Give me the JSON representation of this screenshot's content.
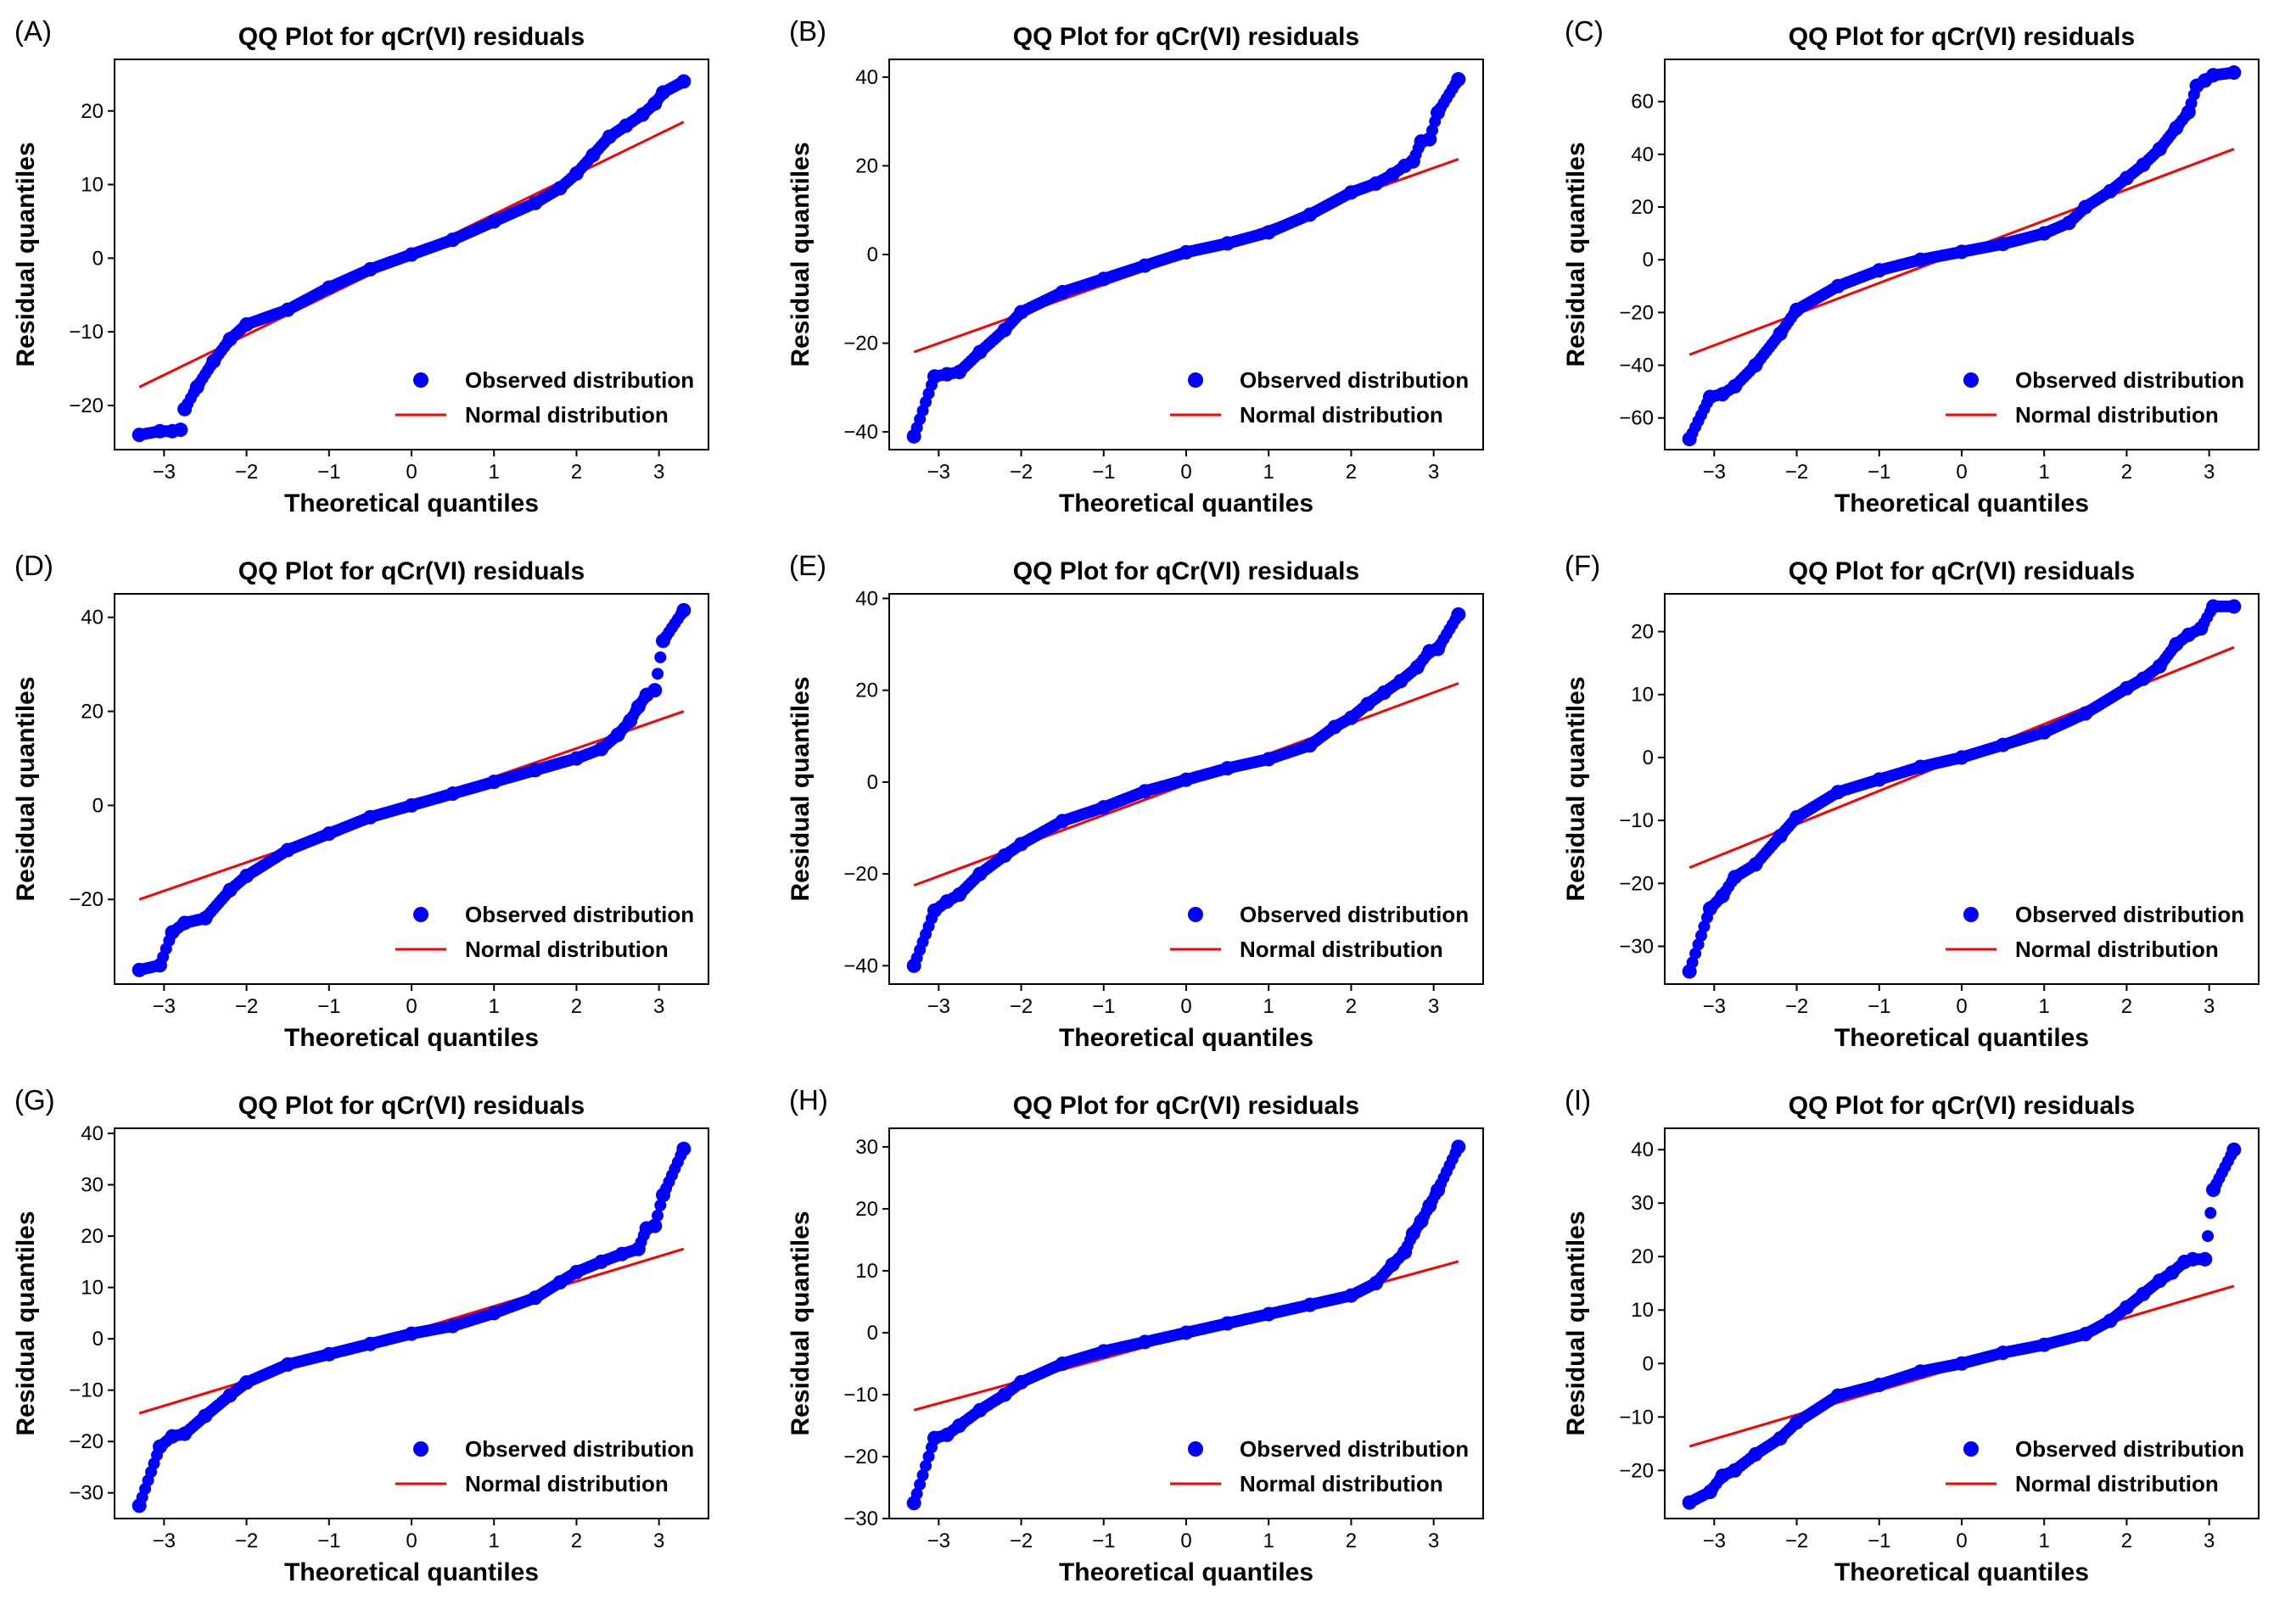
{
  "figure": {
    "panels_title": "QQ Plot for qCr(VI) residuals",
    "xlabel": "Theoretical quantiles",
    "ylabel": "Residual quantiles",
    "legend": {
      "observed": "Observed distribution",
      "normal": "Normal distribution"
    },
    "colors": {
      "points": "#0000ff",
      "line": "#ff0000"
    }
  },
  "chart_data": [
    {
      "type": "scatter",
      "panel": "(A)",
      "title": "QQ Plot for qCr(VI) residuals",
      "xlabel": "Theoretical quantiles",
      "ylabel": "Residual quantiles",
      "xlim": [
        -3.6,
        3.6
      ],
      "ylim": [
        -26,
        27
      ],
      "xticks": [
        -3,
        -2,
        -1,
        0,
        1,
        2,
        3
      ],
      "yticks": [
        -20,
        -10,
        0,
        10,
        20
      ],
      "fit_line": {
        "x": [
          -3.3,
          3.3
        ],
        "y": [
          -17.5,
          18.5
        ]
      },
      "points": {
        "x": [
          -3.3,
          -3.05,
          -2.9,
          -2.8,
          -2.75,
          -2.6,
          -2.4,
          -2.2,
          -2.0,
          -1.5,
          -1.0,
          -0.5,
          0.0,
          0.5,
          1.0,
          1.5,
          1.8,
          2.0,
          2.2,
          2.4,
          2.6,
          2.8,
          2.95,
          3.05,
          3.3
        ],
        "y": [
          -24,
          -23.5,
          -23.5,
          -23.3,
          -20.5,
          -17.5,
          -14,
          -11,
          -9,
          -7,
          -4,
          -1.5,
          0.5,
          2.5,
          5,
          7.5,
          9.5,
          11.5,
          14,
          16.5,
          18,
          19.5,
          21,
          22.5,
          24
        ]
      },
      "legend": [
        "Observed distribution",
        "Normal distribution"
      ]
    },
    {
      "type": "scatter",
      "panel": "(B)",
      "title": "QQ Plot for qCr(VI) residuals",
      "xlabel": "Theoretical quantiles",
      "ylabel": "Residual quantiles",
      "xlim": [
        -3.6,
        3.6
      ],
      "ylim": [
        -44,
        44
      ],
      "xticks": [
        -3,
        -2,
        -1,
        0,
        1,
        2,
        3
      ],
      "yticks": [
        -40,
        -20,
        0,
        20,
        40
      ],
      "fit_line": {
        "x": [
          -3.3,
          3.3
        ],
        "y": [
          -22,
          21.5
        ]
      },
      "points": {
        "x": [
          -3.3,
          -3.05,
          -2.9,
          -2.75,
          -2.5,
          -2.2,
          -2.0,
          -1.5,
          -1.0,
          -0.5,
          0.0,
          0.5,
          1.0,
          1.5,
          2.0,
          2.3,
          2.5,
          2.65,
          2.75,
          2.85,
          2.95,
          3.05,
          3.3
        ],
        "y": [
          -41,
          -27.5,
          -27,
          -26.5,
          -22,
          -17,
          -13,
          -8.5,
          -5.5,
          -2.5,
          0.5,
          2.5,
          5,
          9,
          14,
          16,
          18,
          20,
          21,
          25.5,
          26,
          32,
          39.5
        ]
      },
      "legend": [
        "Observed distribution",
        "Normal distribution"
      ]
    },
    {
      "type": "scatter",
      "panel": "(C)",
      "title": "QQ Plot for qCr(VI) residuals",
      "xlabel": "Theoretical quantiles",
      "ylabel": "Residual quantiles",
      "xlim": [
        -3.6,
        3.6
      ],
      "ylim": [
        -72,
        76
      ],
      "xticks": [
        -3,
        -2,
        -1,
        0,
        1,
        2,
        3
      ],
      "yticks": [
        -60,
        -40,
        -20,
        0,
        20,
        40,
        60
      ],
      "fit_line": {
        "x": [
          -3.3,
          3.3
        ],
        "y": [
          -36,
          42
        ]
      },
      "points": {
        "x": [
          -3.3,
          -3.05,
          -2.9,
          -2.75,
          -2.5,
          -2.2,
          -2.0,
          -1.5,
          -1.0,
          -0.5,
          0.0,
          0.5,
          1.0,
          1.3,
          1.5,
          1.8,
          2.0,
          2.2,
          2.4,
          2.6,
          2.75,
          2.85,
          2.95,
          3.05,
          3.3
        ],
        "y": [
          -68,
          -52,
          -51,
          -48,
          -40,
          -28,
          -19,
          -10,
          -4,
          0,
          3,
          6,
          10,
          14,
          20,
          26,
          31,
          36,
          42,
          50,
          56,
          66,
          68,
          70,
          71
        ]
      },
      "legend": [
        "Observed distribution",
        "Normal distribution"
      ]
    },
    {
      "type": "scatter",
      "panel": "(D)",
      "title": "QQ Plot for qCr(VI) residuals",
      "xlabel": "Theoretical quantiles",
      "ylabel": "Residual quantiles",
      "xlim": [
        -3.6,
        3.6
      ],
      "ylim": [
        -38,
        45
      ],
      "xticks": [
        -3,
        -2,
        -1,
        0,
        1,
        2,
        3
      ],
      "yticks": [
        -20,
        0,
        20,
        40
      ],
      "fit_line": {
        "x": [
          -3.3,
          3.3
        ],
        "y": [
          -20,
          20
        ]
      },
      "points": {
        "x": [
          -3.3,
          -3.05,
          -2.9,
          -2.75,
          -2.5,
          -2.2,
          -2.0,
          -1.5,
          -1.0,
          -0.5,
          0.0,
          0.5,
          1.0,
          1.5,
          2.0,
          2.3,
          2.5,
          2.65,
          2.75,
          2.85,
          2.95,
          3.05,
          3.3
        ],
        "y": [
          -35,
          -34,
          -27,
          -25,
          -24,
          -18,
          -15,
          -9.5,
          -6,
          -2.5,
          0,
          2.5,
          5,
          7.5,
          10,
          12,
          15,
          18,
          21,
          23.5,
          24.5,
          35,
          41.5
        ]
      },
      "legend": [
        "Observed distribution",
        "Normal distribution"
      ]
    },
    {
      "type": "scatter",
      "panel": "(E)",
      "title": "QQ Plot for qCr(VI) residuals",
      "xlabel": "Theoretical quantiles",
      "ylabel": "Residual quantiles",
      "xlim": [
        -3.6,
        3.6
      ],
      "ylim": [
        -44,
        41
      ],
      "xticks": [
        -3,
        -2,
        -1,
        0,
        1,
        2,
        3
      ],
      "yticks": [
        -40,
        -20,
        0,
        20,
        40
      ],
      "fit_line": {
        "x": [
          -3.3,
          3.3
        ],
        "y": [
          -22.5,
          21.5
        ]
      },
      "points": {
        "x": [
          -3.3,
          -3.05,
          -2.9,
          -2.75,
          -2.5,
          -2.2,
          -2.0,
          -1.5,
          -1.0,
          -0.5,
          0.0,
          0.5,
          1.0,
          1.5,
          1.8,
          2.0,
          2.2,
          2.4,
          2.6,
          2.8,
          2.95,
          3.05,
          3.3
        ],
        "y": [
          -40,
          -28,
          -26,
          -24.5,
          -20,
          -16,
          -13.5,
          -8.5,
          -5.5,
          -2,
          0.5,
          3,
          5,
          8,
          12,
          14,
          17,
          19.5,
          22,
          25,
          28.5,
          29,
          36.5
        ]
      },
      "legend": [
        "Observed distribution",
        "Normal distribution"
      ]
    },
    {
      "type": "scatter",
      "panel": "(F)",
      "title": "QQ Plot for qCr(VI) residuals",
      "xlabel": "Theoretical quantiles",
      "ylabel": "Residual quantiles",
      "xlim": [
        -3.6,
        3.6
      ],
      "ylim": [
        -36,
        26
      ],
      "xticks": [
        -3,
        -2,
        -1,
        0,
        1,
        2,
        3
      ],
      "yticks": [
        -30,
        -20,
        -10,
        0,
        10,
        20
      ],
      "fit_line": {
        "x": [
          -3.3,
          3.3
        ],
        "y": [
          -17.5,
          17.5
        ]
      },
      "points": {
        "x": [
          -3.3,
          -3.05,
          -2.9,
          -2.75,
          -2.5,
          -2.2,
          -2.0,
          -1.5,
          -1.0,
          -0.5,
          0.0,
          0.5,
          1.0,
          1.5,
          2.0,
          2.2,
          2.4,
          2.6,
          2.75,
          2.9,
          3.05,
          3.3
        ],
        "y": [
          -34,
          -24,
          -22,
          -19,
          -17,
          -12.5,
          -9.5,
          -5.5,
          -3.5,
          -1.5,
          0,
          2,
          4,
          7,
          11,
          12.5,
          14.5,
          18,
          19.5,
          20.5,
          24,
          24
        ]
      },
      "legend": [
        "Observed distribution",
        "Normal distribution"
      ]
    },
    {
      "type": "scatter",
      "panel": "(G)",
      "title": "QQ Plot for qCr(VI) residuals",
      "xlabel": "Theoretical quantiles",
      "ylabel": "Residual quantiles",
      "xlim": [
        -3.6,
        3.6
      ],
      "ylim": [
        -35,
        41
      ],
      "xticks": [
        -3,
        -2,
        -1,
        0,
        1,
        2,
        3
      ],
      "yticks": [
        -30,
        -20,
        -10,
        0,
        10,
        20,
        30,
        40
      ],
      "fit_line": {
        "x": [
          -3.3,
          3.3
        ],
        "y": [
          -14.5,
          17.5
        ]
      },
      "points": {
        "x": [
          -3.3,
          -3.05,
          -2.9,
          -2.75,
          -2.5,
          -2.2,
          -2.0,
          -1.5,
          -1.0,
          -0.5,
          0.0,
          0.5,
          1.0,
          1.5,
          1.8,
          2.0,
          2.3,
          2.55,
          2.75,
          2.85,
          2.95,
          3.05,
          3.3
        ],
        "y": [
          -32.5,
          -21,
          -19,
          -18.5,
          -15,
          -11,
          -8.5,
          -5,
          -3,
          -1,
          1,
          2.5,
          5,
          8,
          11,
          13,
          15,
          16.5,
          17.5,
          21.5,
          22,
          28,
          37
        ]
      },
      "legend": [
        "Observed distribution",
        "Normal distribution"
      ]
    },
    {
      "type": "scatter",
      "panel": "(H)",
      "title": "QQ Plot for qCr(VI) residuals",
      "xlabel": "Theoretical quantiles",
      "ylabel": "Residual quantiles",
      "xlim": [
        -3.6,
        3.6
      ],
      "ylim": [
        -30,
        33
      ],
      "xticks": [
        -3,
        -2,
        -1,
        0,
        1,
        2,
        3
      ],
      "yticks": [
        -30,
        -20,
        -10,
        0,
        10,
        20,
        30
      ],
      "fit_line": {
        "x": [
          -3.3,
          3.3
        ],
        "y": [
          -12.5,
          11.5
        ]
      },
      "points": {
        "x": [
          -3.3,
          -3.05,
          -2.9,
          -2.75,
          -2.5,
          -2.2,
          -2.0,
          -1.5,
          -1.0,
          -0.5,
          0.0,
          0.5,
          1.0,
          1.5,
          2.0,
          2.3,
          2.5,
          2.65,
          2.75,
          2.85,
          2.95,
          3.05,
          3.3
        ],
        "y": [
          -27.5,
          -17,
          -16.5,
          -15,
          -12.5,
          -10,
          -8,
          -5,
          -3,
          -1.5,
          0,
          1.5,
          3,
          4.5,
          6,
          8,
          11,
          13,
          16,
          18,
          20.5,
          23,
          30
        ]
      },
      "legend": [
        "Observed distribution",
        "Normal distribution"
      ]
    },
    {
      "type": "scatter",
      "panel": "(I)",
      "title": "QQ Plot for qCr(VI) residuals",
      "xlabel": "Theoretical quantiles",
      "ylabel": "Residual quantiles",
      "xlim": [
        -3.6,
        3.6
      ],
      "ylim": [
        -29,
        44
      ],
      "xticks": [
        -3,
        -2,
        -1,
        0,
        1,
        2,
        3
      ],
      "yticks": [
        -20,
        -10,
        0,
        10,
        20,
        30,
        40
      ],
      "fit_line": {
        "x": [
          -3.3,
          3.3
        ],
        "y": [
          -15.5,
          14.5
        ]
      },
      "points": {
        "x": [
          -3.3,
          -3.05,
          -2.9,
          -2.75,
          -2.5,
          -2.2,
          -2.0,
          -1.5,
          -1.0,
          -0.5,
          0.0,
          0.5,
          1.0,
          1.5,
          1.8,
          2.0,
          2.2,
          2.4,
          2.55,
          2.7,
          2.8,
          2.95,
          3.05,
          3.3
        ],
        "y": [
          -26,
          -24,
          -21,
          -20,
          -17,
          -14,
          -11,
          -6,
          -4,
          -1.5,
          0,
          2,
          3.5,
          5.5,
          8,
          10.5,
          13,
          15.5,
          17,
          19,
          19.5,
          19.5,
          32.5,
          40
        ]
      },
      "legend": [
        "Observed distribution",
        "Normal distribution"
      ]
    }
  ]
}
